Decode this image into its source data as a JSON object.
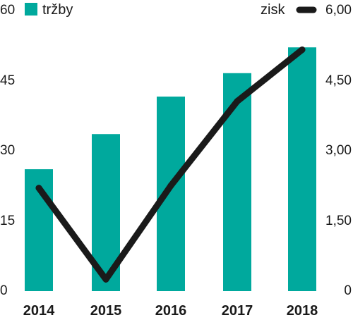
{
  "chart_data": {
    "type": "bar",
    "categories": [
      "2014",
      "2015",
      "2016",
      "2017",
      "2018"
    ],
    "series": [
      {
        "name": "tržby",
        "type": "bar",
        "axis": "left",
        "color": "#00a99d",
        "values": [
          26,
          33.5,
          41.5,
          46.5,
          52
        ]
      },
      {
        "name": "zisk",
        "type": "line",
        "axis": "right",
        "color": "#1a1a1a",
        "values": [
          2.2,
          0.25,
          2.25,
          4.05,
          5.15
        ]
      }
    ],
    "y_left": {
      "ticks": [
        "0",
        "15",
        "30",
        "45",
        "60"
      ],
      "range": [
        0,
        60
      ]
    },
    "y_right": {
      "ticks": [
        "0",
        "1,50",
        "3,00",
        "4,50",
        "6,00"
      ],
      "range": [
        0,
        6
      ]
    },
    "grid": false,
    "legend": {
      "placement": "top"
    }
  }
}
